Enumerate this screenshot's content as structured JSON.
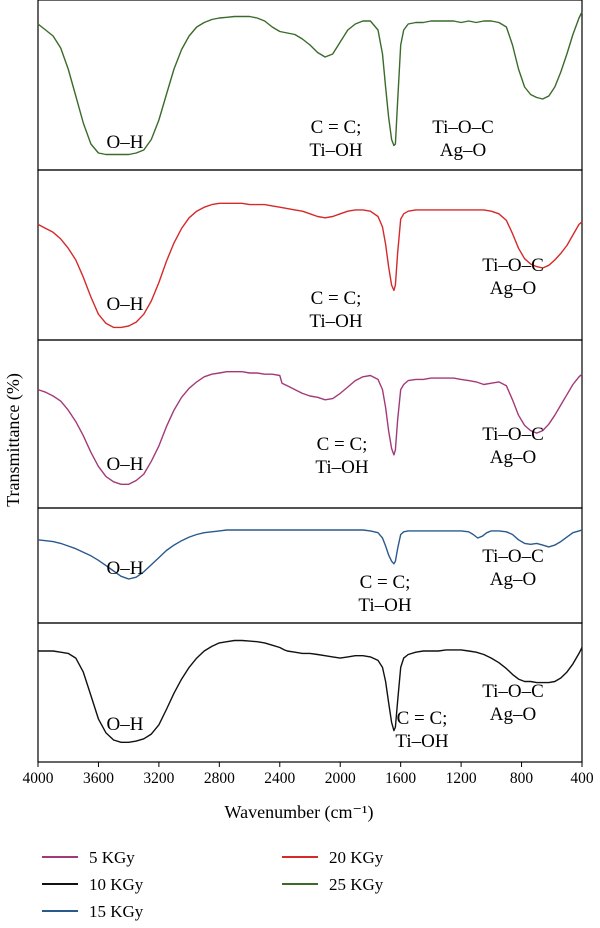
{
  "chart_data": {
    "type": "line",
    "xlabel": "Wavenumber (cm⁻¹)",
    "ylabel": "Transmittance (%)",
    "xlim": [
      4000,
      400
    ],
    "x_ticks": [
      "4000",
      "3600",
      "3200",
      "2800",
      "2400",
      "2000",
      "1600",
      "1200",
      "800",
      "400"
    ],
    "grid": false,
    "legend_position": "bottom",
    "panel_order": [
      "25 KGy",
      "20 KGy",
      "5 KGy",
      "15 KGy",
      "10 KGy"
    ],
    "series": [
      {
        "name": "25 KGy",
        "color": "#3a6b2a",
        "x": [
          4000,
          3950,
          3900,
          3850,
          3800,
          3750,
          3700,
          3650,
          3600,
          3550,
          3500,
          3450,
          3400,
          3350,
          3300,
          3250,
          3200,
          3150,
          3100,
          3050,
          3000,
          2950,
          2900,
          2850,
          2800,
          2750,
          2700,
          2650,
          2600,
          2550,
          2500,
          2450,
          2400,
          2350,
          2300,
          2250,
          2200,
          2150,
          2100,
          2050,
          2000,
          1950,
          1900,
          1850,
          1800,
          1750,
          1720,
          1700,
          1680,
          1660,
          1645,
          1635,
          1620,
          1600,
          1580,
          1550,
          1500,
          1450,
          1400,
          1350,
          1300,
          1250,
          1200,
          1150,
          1100,
          1050,
          1000,
          950,
          900,
          860,
          820,
          780,
          740,
          700,
          660,
          620,
          580,
          540,
          500,
          460,
          420,
          400
        ],
        "y": [
          92,
          88,
          84,
          76,
          62,
          44,
          26,
          12,
          6,
          5,
          5,
          5,
          5,
          6,
          8,
          15,
          28,
          45,
          62,
          75,
          84,
          90,
          93,
          95,
          96,
          96.5,
          97,
          97,
          97,
          96,
          94,
          90,
          87,
          86,
          85,
          82,
          78,
          73,
          70,
          72,
          80,
          88,
          92,
          94,
          94,
          88,
          72,
          50,
          30,
          15,
          11,
          12,
          40,
          78,
          88,
          92,
          93,
          93,
          94,
          94,
          94,
          94,
          93,
          94,
          93,
          94,
          94,
          93,
          90,
          78,
          62,
          50,
          45,
          43,
          42,
          44,
          50,
          60,
          72,
          85,
          96,
          100
        ]
      },
      {
        "name": "20 KGy",
        "color": "#d42a2a",
        "x": [
          4000,
          3950,
          3900,
          3850,
          3800,
          3750,
          3700,
          3650,
          3600,
          3550,
          3500,
          3450,
          3400,
          3350,
          3300,
          3250,
          3200,
          3150,
          3100,
          3050,
          3000,
          2950,
          2900,
          2850,
          2800,
          2750,
          2700,
          2650,
          2600,
          2550,
          2500,
          2450,
          2400,
          2350,
          2300,
          2250,
          2200,
          2150,
          2100,
          2050,
          2000,
          1950,
          1900,
          1850,
          1800,
          1750,
          1720,
          1700,
          1680,
          1660,
          1645,
          1635,
          1620,
          1600,
          1580,
          1550,
          1500,
          1450,
          1400,
          1350,
          1300,
          1250,
          1200,
          1150,
          1100,
          1050,
          1000,
          950,
          900,
          860,
          820,
          780,
          740,
          700,
          660,
          620,
          580,
          540,
          500,
          460,
          420,
          400
        ],
        "y": [
          80,
          77,
          74,
          69,
          62,
          53,
          40,
          25,
          12,
          5,
          2,
          2,
          3,
          6,
          12,
          22,
          36,
          52,
          66,
          77,
          85,
          90,
          93,
          95,
          96,
          96,
          96,
          96,
          95,
          95,
          95,
          94,
          93,
          92,
          91,
          90,
          88,
          86,
          85,
          86,
          88,
          90,
          91,
          91,
          90,
          86,
          78,
          65,
          48,
          34,
          30,
          34,
          58,
          84,
          88,
          90,
          91,
          91,
          91,
          91,
          91,
          91,
          91,
          91,
          91,
          91,
          90,
          88,
          83,
          73,
          62,
          54,
          50,
          48,
          47,
          49,
          53,
          58,
          64,
          72,
          80,
          82
        ]
      },
      {
        "name": "5 KGy",
        "color": "#a33a78",
        "x": [
          4000,
          3950,
          3900,
          3850,
          3800,
          3750,
          3700,
          3650,
          3600,
          3550,
          3500,
          3450,
          3400,
          3350,
          3300,
          3250,
          3200,
          3150,
          3100,
          3050,
          3000,
          2950,
          2900,
          2850,
          2800,
          2750,
          2700,
          2650,
          2600,
          2550,
          2500,
          2450,
          2400,
          2385,
          2350,
          2300,
          2250,
          2200,
          2150,
          2100,
          2050,
          2000,
          1950,
          1900,
          1850,
          1800,
          1750,
          1720,
          1700,
          1680,
          1660,
          1645,
          1635,
          1620,
          1600,
          1580,
          1550,
          1500,
          1450,
          1400,
          1350,
          1300,
          1250,
          1200,
          1150,
          1100,
          1050,
          1000,
          950,
          900,
          860,
          820,
          780,
          740,
          700,
          660,
          620,
          580,
          540,
          500,
          460,
          420,
          400
        ],
        "y": [
          80,
          78,
          75,
          71,
          64,
          55,
          44,
          31,
          20,
          12,
          8,
          6,
          6,
          9,
          14,
          24,
          36,
          51,
          64,
          74,
          81,
          86,
          90,
          92,
          93,
          94,
          94,
          94,
          93,
          93,
          92,
          92,
          91,
          85,
          83,
          80,
          77,
          75,
          74,
          72,
          73,
          77,
          82,
          87,
          90,
          91,
          88,
          80,
          66,
          48,
          34,
          29,
          33,
          56,
          80,
          84,
          87,
          88,
          88,
          89,
          89,
          89,
          89,
          88,
          87,
          86,
          84,
          85,
          86,
          83,
          72,
          60,
          52,
          48,
          46,
          48,
          53,
          60,
          68,
          76,
          84,
          90,
          92
        ]
      },
      {
        "name": "15 KGy",
        "color": "#2a5a8c",
        "x": [
          4000,
          3950,
          3900,
          3850,
          3800,
          3750,
          3700,
          3650,
          3600,
          3550,
          3500,
          3450,
          3400,
          3350,
          3300,
          3250,
          3200,
          3150,
          3100,
          3050,
          3000,
          2950,
          2900,
          2850,
          2800,
          2750,
          2700,
          2650,
          2600,
          2550,
          2500,
          2450,
          2400,
          2350,
          2300,
          2250,
          2200,
          2150,
          2100,
          2050,
          2000,
          1950,
          1900,
          1850,
          1800,
          1750,
          1720,
          1700,
          1680,
          1660,
          1645,
          1635,
          1620,
          1600,
          1580,
          1550,
          1500,
          1450,
          1400,
          1350,
          1300,
          1250,
          1200,
          1150,
          1120,
          1090,
          1060,
          1030,
          1000,
          950,
          900,
          860,
          820,
          780,
          740,
          700,
          660,
          620,
          580,
          540,
          500,
          460,
          420,
          400
        ],
        "y": [
          80,
          79,
          78,
          76,
          73,
          70,
          66,
          62,
          57,
          51,
          45,
          39,
          36,
          38,
          44,
          52,
          60,
          68,
          74,
          79,
          83,
          86,
          88,
          89,
          90,
          91,
          91,
          91,
          91,
          91,
          91,
          91,
          91,
          91,
          91,
          91,
          91,
          91,
          91,
          91,
          91,
          91,
          91,
          91,
          90,
          88,
          82,
          73,
          63,
          56,
          53,
          56,
          70,
          86,
          89,
          90,
          90,
          90,
          90,
          90,
          90,
          90,
          90,
          89,
          86,
          82,
          84,
          88,
          90,
          90,
          89,
          86,
          80,
          76,
          75,
          76,
          74,
          72,
          74,
          78,
          83,
          88,
          90,
          91
        ]
      },
      {
        "name": "10 KGy",
        "color": "#111111",
        "x": [
          4000,
          3950,
          3900,
          3850,
          3800,
          3750,
          3700,
          3650,
          3600,
          3550,
          3500,
          3450,
          3400,
          3350,
          3300,
          3250,
          3200,
          3150,
          3100,
          3050,
          3000,
          2950,
          2900,
          2850,
          2800,
          2750,
          2700,
          2650,
          2600,
          2550,
          2500,
          2450,
          2400,
          2370,
          2350,
          2300,
          2250,
          2200,
          2150,
          2100,
          2050,
          2000,
          1950,
          1900,
          1850,
          1800,
          1750,
          1720,
          1700,
          1680,
          1660,
          1645,
          1635,
          1620,
          1600,
          1580,
          1550,
          1500,
          1450,
          1400,
          1350,
          1300,
          1250,
          1200,
          1150,
          1100,
          1050,
          1000,
          950,
          900,
          860,
          820,
          780,
          740,
          700,
          660,
          620,
          580,
          540,
          500,
          460,
          420,
          400
        ],
        "y": [
          88,
          88,
          88,
          87,
          86,
          82,
          70,
          50,
          30,
          18,
          12,
          10,
          10,
          11,
          13,
          17,
          25,
          38,
          52,
          64,
          74,
          82,
          88,
          92,
          95,
          96,
          97,
          97,
          96.5,
          96,
          95,
          93,
          91,
          89,
          88,
          87,
          86,
          86,
          85,
          84,
          83,
          82,
          83,
          84,
          84,
          83,
          80,
          74,
          62,
          44,
          27,
          20,
          23,
          45,
          74,
          82,
          85,
          87,
          88,
          88,
          88,
          89,
          89,
          89,
          88,
          87,
          85,
          82,
          78,
          73,
          68,
          64,
          62,
          62,
          61,
          61,
          61,
          62,
          65,
          70,
          77,
          86,
          91
        ]
      }
    ],
    "annotations": [
      {
        "panel": "25 KGy",
        "lines": [
          "O–H"
        ]
      },
      {
        "panel": "25 KGy",
        "lines": [
          "C = C;",
          "Ti–OH"
        ]
      },
      {
        "panel": "25 KGy",
        "lines": [
          "Ti–O–C",
          "Ag–O"
        ]
      },
      {
        "panel": "20 KGy",
        "lines": [
          "O–H"
        ]
      },
      {
        "panel": "20 KGy",
        "lines": [
          "C = C;",
          "Ti–OH"
        ]
      },
      {
        "panel": "20 KGy",
        "lines": [
          "Ti–O–C",
          "Ag–O"
        ]
      },
      {
        "panel": "5 KGy",
        "lines": [
          "O–H"
        ]
      },
      {
        "panel": "5 KGy",
        "lines": [
          "C = C;",
          "Ti–OH"
        ]
      },
      {
        "panel": "5 KGy",
        "lines": [
          "Ti–O–C",
          "Ag–O"
        ]
      },
      {
        "panel": "15 KGy",
        "lines": [
          "O–H"
        ]
      },
      {
        "panel": "15 KGy",
        "lines": [
          "C = C;",
          "Ti–OH"
        ]
      },
      {
        "panel": "15 KGy",
        "lines": [
          "Ti–O–C",
          "Ag–O"
        ]
      },
      {
        "panel": "10 KGy",
        "lines": [
          "O–H"
        ]
      },
      {
        "panel": "10 KGy",
        "lines": [
          "C = C;",
          "Ti–OH"
        ]
      },
      {
        "panel": "10 KGy",
        "lines": [
          "Ti–O–C",
          "Ag–O"
        ]
      }
    ],
    "legend": [
      {
        "label": "5 KGy",
        "color": "#a33a78"
      },
      {
        "label": "20 KGy",
        "color": "#d42a2a"
      },
      {
        "label": "10 KGy",
        "color": "#111111"
      },
      {
        "label": "25 KGy",
        "color": "#3a6b2a"
      },
      {
        "label": "15 KGy",
        "color": "#2a5a8c"
      }
    ]
  }
}
